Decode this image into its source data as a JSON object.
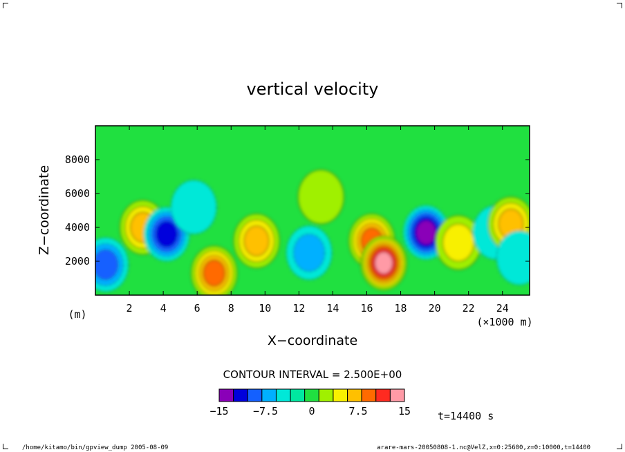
{
  "chart_data": {
    "type": "heatmap",
    "title": "vertical velocity",
    "xlabel": "X−coordinate",
    "ylabel": "Z−coordinate",
    "xunit": "(×1000 m)",
    "yunit": "(m)",
    "xlim": [
      0,
      25.6
    ],
    "ylim": [
      0,
      10000
    ],
    "xticks": [
      2,
      4,
      6,
      8,
      10,
      12,
      14,
      16,
      18,
      20,
      22,
      24
    ],
    "yticks": [
      2000,
      4000,
      6000,
      8000
    ],
    "contour_interval_label": "CONTOUR INTERVAL = 2.500E+00",
    "colorbar": {
      "levels": [
        -15,
        -12.5,
        -10,
        -7.5,
        -5,
        -2.5,
        0,
        2.5,
        5,
        7.5,
        10,
        12.5,
        15
      ],
      "labels": [
        "−15",
        "−7.5",
        "0",
        "7.5",
        "15"
      ],
      "colors": [
        "#8a00b8",
        "#0000dc",
        "#1460ff",
        "#00b0ff",
        "#00e8d8",
        "#00e8a0",
        "#20e040",
        "#a0f000",
        "#f8f000",
        "#ffc000",
        "#ff6a00",
        "#ff2a20",
        "#ff9aa6"
      ]
    },
    "time_label": "t=14400 s",
    "background_color": "#20e040",
    "features": [
      {
        "x": 0.6,
        "z": 1800,
        "w": -7.5
      },
      {
        "x": 2.8,
        "z": 4000,
        "w": 7.5
      },
      {
        "x": 4.2,
        "z": 3600,
        "w": -10
      },
      {
        "x": 5.8,
        "z": 5200,
        "w": -2.5
      },
      {
        "x": 7.0,
        "z": 1300,
        "w": 10
      },
      {
        "x": 9.5,
        "z": 3200,
        "w": 7.5
      },
      {
        "x": 12.6,
        "z": 2500,
        "w": -5
      },
      {
        "x": 13.3,
        "z": 5800,
        "w": 2.5
      },
      {
        "x": 16.3,
        "z": 3200,
        "w": 10
      },
      {
        "x": 17.0,
        "z": 1900,
        "w": 15
      },
      {
        "x": 19.5,
        "z": 3700,
        "w": -12.5
      },
      {
        "x": 21.4,
        "z": 3100,
        "w": 5
      },
      {
        "x": 23.6,
        "z": 3700,
        "w": -2.5
      },
      {
        "x": 24.5,
        "z": 4200,
        "w": 7.5
      },
      {
        "x": 25.0,
        "z": 2200,
        "w": -2.5
      }
    ]
  },
  "footer": {
    "left": "/home/kitamo/bin/gpview_dump   2005-08-09",
    "right": "arare-mars-20050808-1.nc@VelZ,x=0:25600,z=0:10000,t=14400"
  }
}
